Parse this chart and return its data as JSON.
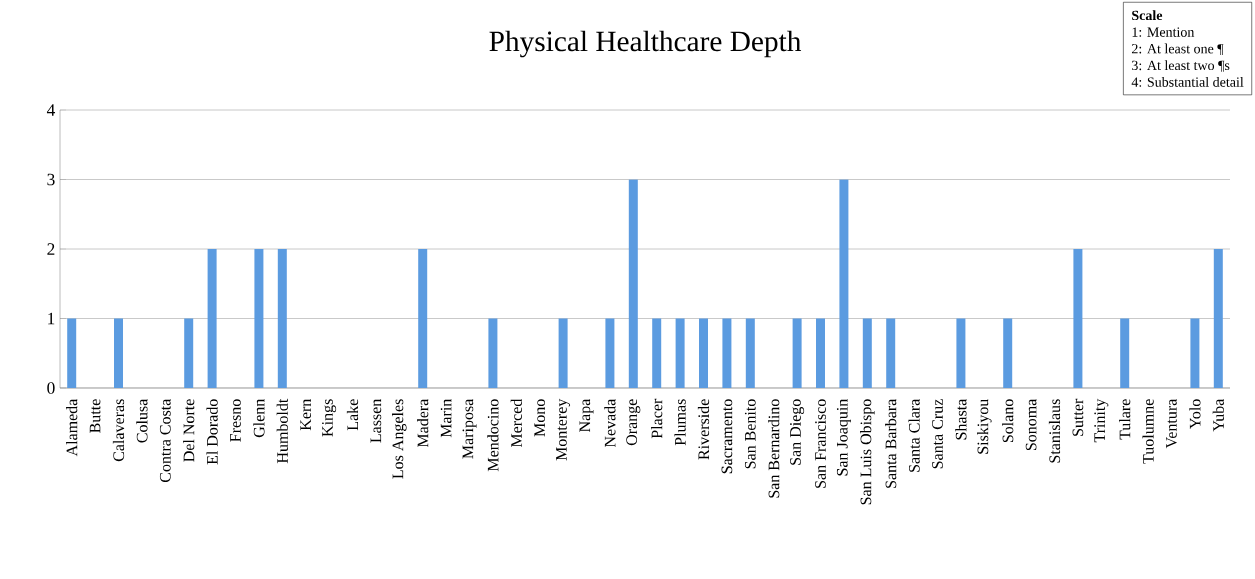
{
  "chart_data": {
    "type": "bar",
    "title": "Physical Healthcare Depth",
    "categories": [
      "Alameda",
      "Butte",
      "Calaveras",
      "Colusa",
      "Contra Costa",
      "Del Norte",
      "El Dorado",
      "Fresno",
      "Glenn",
      "Humboldt",
      "Kern",
      "Kings",
      "Lake",
      "Lassen",
      "Los Angeles",
      "Madera",
      "Marin",
      "Mariposa",
      "Mendocino",
      "Merced",
      "Mono",
      "Monterey",
      "Napa",
      "Nevada",
      "Orange",
      "Placer",
      "Plumas",
      "Riverside",
      "Sacramento",
      "San Benito",
      "San Bernardino",
      "San Diego",
      "San Francisco",
      "San Joaquin",
      "San Luis Obispo",
      "Santa Barbara",
      "Santa Clara",
      "Santa Cruz",
      "Shasta",
      "Siskiyou",
      "Solano",
      "Sonoma",
      "Stanislaus",
      "Sutter",
      "Trinity",
      "Tulare",
      "Tuolumne",
      "Ventura",
      "Yolo",
      "Yuba"
    ],
    "values": [
      1,
      0,
      1,
      0,
      0,
      1,
      2,
      0,
      2,
      2,
      0,
      0,
      0,
      0,
      0,
      2,
      0,
      0,
      1,
      0,
      0,
      1,
      0,
      1,
      3,
      1,
      1,
      1,
      1,
      1,
      0,
      1,
      1,
      3,
      1,
      1,
      0,
      0,
      1,
      0,
      1,
      0,
      0,
      2,
      0,
      1,
      0,
      0,
      1,
      2
    ],
    "color": "#5b9be0",
    "ylim": [
      0,
      4
    ],
    "yticks": [
      0,
      1,
      2,
      3,
      4
    ],
    "grid": "y",
    "annotations": [
      "Scale",
      "1: Mention",
      "2: At least one ¶",
      "3: At least two ¶s",
      "4: Substantial detail"
    ]
  }
}
